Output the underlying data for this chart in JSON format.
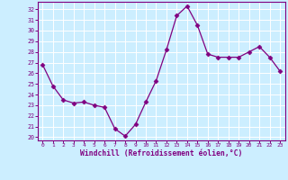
{
  "x": [
    0,
    1,
    2,
    3,
    4,
    5,
    6,
    7,
    8,
    9,
    10,
    11,
    12,
    13,
    14,
    15,
    16,
    17,
    18,
    19,
    20,
    21,
    22,
    23
  ],
  "y": [
    26.8,
    24.8,
    23.5,
    23.2,
    23.3,
    23.0,
    22.8,
    20.8,
    20.1,
    21.2,
    23.3,
    25.3,
    28.2,
    31.4,
    32.3,
    30.5,
    27.8,
    27.5,
    27.5,
    27.5,
    28.0,
    28.5,
    27.5,
    26.2
  ],
  "line_color": "#800080",
  "marker": "D",
  "marker_size": 2.5,
  "bg_color": "#cceeff",
  "plot_bg_color": "#cce8e8",
  "grid_color": "#aacccc",
  "xlabel": "Windchill (Refroidissement éolien,°C)",
  "xlabel_color": "#800080",
  "ylabel_ticks": [
    20,
    21,
    22,
    23,
    24,
    25,
    26,
    27,
    28,
    29,
    30,
    31,
    32
  ],
  "xlim": [
    -0.5,
    23.5
  ],
  "ylim": [
    19.7,
    32.7
  ],
  "tick_color": "#800080",
  "spine_color": "#800080",
  "figsize": [
    3.2,
    2.0
  ],
  "dpi": 100
}
